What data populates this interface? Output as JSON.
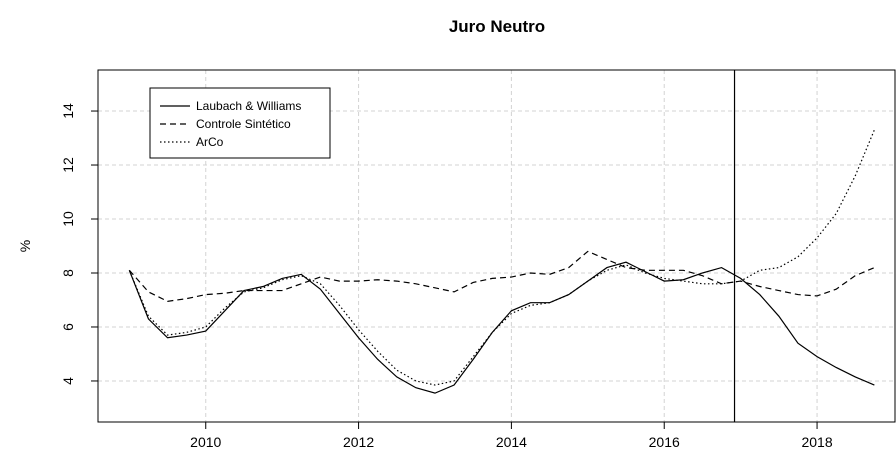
{
  "chart_data": {
    "type": "line",
    "title": "Juro Neutro",
    "y_label": "%",
    "x": [
      2009.0,
      2009.25,
      2009.5,
      2009.75,
      2010.0,
      2010.25,
      2010.5,
      2010.75,
      2011.0,
      2011.25,
      2011.5,
      2011.75,
      2012.0,
      2012.25,
      2012.5,
      2012.75,
      2013.0,
      2013.25,
      2013.5,
      2013.75,
      2014.0,
      2014.25,
      2014.5,
      2014.75,
      2015.0,
      2015.25,
      2015.5,
      2015.75,
      2016.0,
      2016.25,
      2016.5,
      2016.75,
      2017.0,
      2017.25,
      2017.5,
      2017.75,
      2018.0,
      2018.25,
      2018.5,
      2018.75
    ],
    "series": [
      {
        "name": "Laubach & Williams",
        "color": "#000000",
        "dash": "none",
        "values": [
          8.1,
          6.3,
          5.6,
          5.7,
          5.85,
          6.6,
          7.35,
          7.5,
          7.8,
          7.95,
          7.4,
          6.5,
          5.6,
          4.8,
          4.15,
          3.75,
          3.55,
          3.85,
          4.8,
          5.8,
          6.6,
          6.9,
          6.9,
          7.2,
          7.7,
          8.2,
          8.4,
          8.05,
          7.7,
          7.75,
          8.0,
          8.2,
          7.8,
          7.2,
          6.4,
          5.4,
          4.9,
          4.5,
          4.15,
          3.85
        ]
      },
      {
        "name": "Controle Sintético",
        "color": "#000000",
        "dash": "6 4",
        "values": [
          8.1,
          7.3,
          6.95,
          7.05,
          7.2,
          7.25,
          7.35,
          7.35,
          7.35,
          7.6,
          7.85,
          7.7,
          7.7,
          7.75,
          7.7,
          7.6,
          7.45,
          7.3,
          7.65,
          7.8,
          7.85,
          8.0,
          7.95,
          8.2,
          8.8,
          8.5,
          8.2,
          8.1,
          8.1,
          8.1,
          7.9,
          7.6,
          7.7,
          7.5,
          7.35,
          7.2,
          7.15,
          7.4,
          7.9,
          8.2
        ]
      },
      {
        "name": "ArCo",
        "color": "#000000",
        "dash": "1.5 2.5",
        "values": [
          8.1,
          6.4,
          5.7,
          5.8,
          6.0,
          6.7,
          7.3,
          7.45,
          7.75,
          7.9,
          7.6,
          6.8,
          5.9,
          5.1,
          4.4,
          4.0,
          3.85,
          4.0,
          4.9,
          5.8,
          6.5,
          6.8,
          6.9,
          7.2,
          7.7,
          8.1,
          8.3,
          8.0,
          7.8,
          7.7,
          7.6,
          7.6,
          7.7,
          8.1,
          8.2,
          8.6,
          9.3,
          10.2,
          11.6,
          13.3
        ]
      }
    ],
    "vline": 2016.92,
    "xlim": [
      2008.59,
      2019.02
    ],
    "xticks": [
      2010,
      2012,
      2014,
      2016,
      2018
    ],
    "ylim": [
      2.48,
      15.52
    ],
    "yticks": [
      4,
      6,
      8,
      10,
      12,
      14
    ],
    "grid": true,
    "legend": "top-left"
  }
}
